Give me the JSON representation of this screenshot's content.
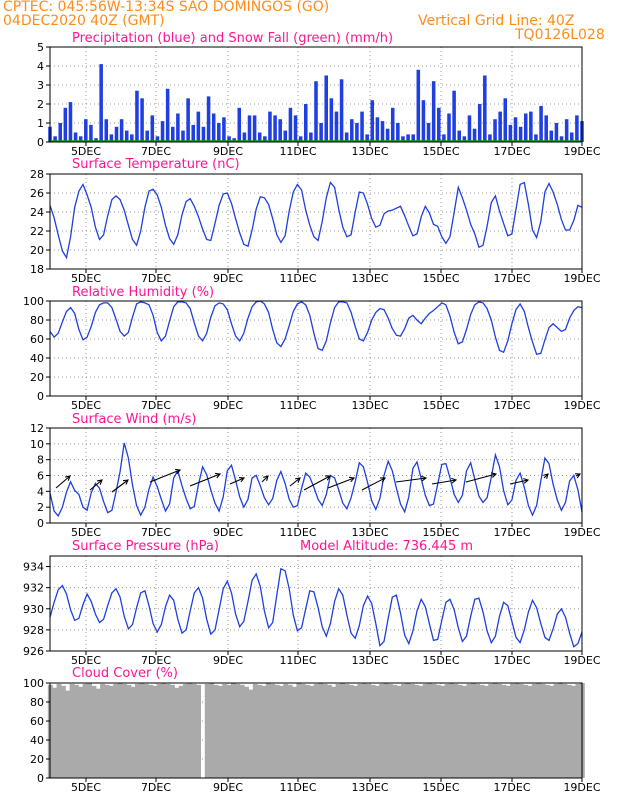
{
  "header": {
    "line1": "CPTEC:   045:56W-13:34S  SAO DOMINGOS (GO)",
    "line2": "04DEC2020 40Z (GMT)",
    "grid_note": "Vertical Grid Line: 40Z",
    "model_id": "TQ0126L028"
  },
  "colors": {
    "header": "#ff8c1a",
    "title": "#ff1493",
    "line": "#1f3fe0",
    "snow": "#00a000",
    "cloud": "#aaaaaa"
  },
  "chart_data": [
    {
      "type": "bar",
      "title": "Precipitation (blue) and Snow Fall (green) (mm/h)",
      "x_tick_labels": [
        "5DEC",
        "7DEC",
        "9DEC",
        "11DEC",
        "13DEC",
        "15DEC",
        "17DEC",
        "19DEC"
      ],
      "ylim": [
        0,
        5
      ],
      "y_ticks": [
        "0",
        "1",
        "2",
        "3",
        "4",
        "5"
      ],
      "series": [
        {
          "values": [
            0.8,
            0.3,
            1.0,
            1.8,
            2.1,
            0.5,
            0.3,
            1.2,
            0.9,
            0.2,
            4.1,
            1.2,
            0.4,
            0.8,
            1.2,
            0.6,
            0.4,
            2.7,
            2.3,
            0.6,
            1.4,
            0.3,
            1.1,
            2.8,
            0.8,
            1.5,
            0.6,
            2.3,
            0.9,
            1.6,
            0.8,
            2.4,
            1.5,
            1.0,
            1.3,
            0.3,
            0.2,
            1.8,
            0.5,
            1.4,
            1.4,
            0.5,
            0.3,
            1.6,
            1.4,
            1.2,
            0.6,
            1.8,
            1.4,
            0.3,
            2.0,
            0.5,
            3.2,
            1.0,
            3.5,
            2.3,
            1.6,
            3.3,
            0.5,
            1.2,
            1.0,
            1.6,
            0.4,
            2.2,
            1.3,
            1.1,
            0.7,
            1.8,
            1.0,
            0.3,
            0.4,
            0.4,
            3.8,
            2.2,
            1.0,
            3.2,
            1.8,
            0.4,
            1.5,
            2.7,
            0.6,
            0.3,
            1.4,
            0.7,
            2.0,
            3.5,
            0.4,
            1.2,
            1.6,
            2.3,
            0.9,
            1.3,
            0.8,
            1.5,
            1.6,
            0.4,
            1.9,
            1.4,
            0.6,
            1.0,
            0.3,
            1.2,
            0.5,
            1.4,
            1.1
          ]
        },
        {
          "values": [
            0
          ]
        }
      ]
    },
    {
      "type": "line",
      "title": "Surface Temperature (nC)",
      "x_tick_labels": [
        "5DEC",
        "7DEC",
        "9DEC",
        "11DEC",
        "13DEC",
        "15DEC",
        "17DEC",
        "19DEC"
      ],
      "ylim": [
        18,
        28
      ],
      "y_ticks": [
        "18",
        "20",
        "22",
        "24",
        "26",
        "28"
      ],
      "values": [
        24.7,
        23.4,
        21.6,
        19.9,
        19.2,
        21.4,
        24.5,
        26.2,
        26.9,
        25.8,
        24.5,
        22.4,
        21.1,
        21.6,
        23.6,
        25.3,
        25.7,
        25.3,
        24.2,
        22.6,
        21.1,
        20.5,
        22.0,
        24.5,
        26.2,
        26.4,
        25.8,
        24.5,
        22.6,
        21.2,
        20.6,
        21.6,
        23.7,
        25.1,
        25.4,
        24.6,
        23.5,
        22.2,
        21.1,
        21.0,
        22.8,
        24.7,
        25.9,
        26.0,
        24.9,
        23.3,
        21.8,
        20.6,
        20.4,
        22.1,
        24.3,
        25.6,
        25.5,
        24.8,
        23.3,
        21.6,
        20.8,
        21.5,
        24.1,
        26.1,
        26.9,
        26.3,
        24.2,
        22.6,
        21.4,
        21.0,
        23.0,
        25.5,
        27.1,
        26.6,
        24.3,
        22.4,
        21.4,
        21.6,
        24.0,
        26.1,
        26.0,
        24.8,
        23.3,
        22.4,
        22.6,
        23.8,
        24.1,
        24.2,
        24.4,
        24.6,
        23.6,
        22.5,
        21.5,
        21.7,
        23.5,
        24.6,
        23.9,
        22.7,
        22.5,
        21.4,
        20.7,
        21.4,
        24.0,
        26.6,
        25.5,
        24.2,
        22.7,
        21.7,
        20.3,
        20.5,
        22.5,
        25.0,
        25.7,
        24.1,
        22.8,
        21.5,
        21.7,
        24.3,
        26.9,
        27.1,
        24.8,
        22.1,
        21.3,
        23.0,
        26.1,
        27.0,
        26.1,
        24.8,
        23.2,
        22.1,
        22.1,
        23.1,
        24.7,
        24.5
      ]
    },
    {
      "type": "line",
      "title": "Relative Humidity (%)",
      "x_tick_labels": [
        "5DEC",
        "7DEC",
        "9DEC",
        "11DEC",
        "13DEC",
        "15DEC",
        "17DEC",
        "19DEC"
      ],
      "ylim": [
        0,
        100
      ],
      "y_ticks": [
        "0",
        "20",
        "40",
        "60",
        "80",
        "100"
      ],
      "values": [
        68,
        62,
        66,
        78,
        89,
        93,
        87,
        70,
        59,
        62,
        73,
        88,
        96,
        98,
        98,
        93,
        81,
        68,
        63,
        67,
        83,
        97,
        99,
        98,
        96,
        85,
        67,
        58,
        63,
        79,
        94,
        99,
        99,
        98,
        92,
        77,
        63,
        58,
        66,
        83,
        95,
        98,
        97,
        91,
        76,
        63,
        58,
        66,
        82,
        94,
        99,
        100,
        97,
        88,
        70,
        56,
        52,
        60,
        74,
        89,
        97,
        99,
        96,
        85,
        66,
        50,
        48,
        58,
        77,
        93,
        99,
        99,
        98,
        88,
        73,
        60,
        58,
        67,
        80,
        88,
        92,
        91,
        82,
        71,
        64,
        63,
        71,
        82,
        85,
        80,
        76,
        82,
        87,
        90,
        94,
        98,
        96,
        84,
        67,
        55,
        57,
        70,
        86,
        96,
        99,
        98,
        92,
        80,
        62,
        48,
        46,
        58,
        76,
        91,
        97,
        89,
        72,
        57,
        44,
        45,
        59,
        72,
        76,
        72,
        68,
        70,
        82,
        90,
        94,
        93
      ]
    },
    {
      "type": "line",
      "title": "Surface Wind (m/s)",
      "x_tick_labels": [
        "5DEC",
        "7DEC",
        "9DEC",
        "11DEC",
        "13DEC",
        "15DEC",
        "17DEC",
        "19DEC"
      ],
      "ylim": [
        0,
        12
      ],
      "y_ticks": [
        "0",
        "2",
        "4",
        "6",
        "8",
        "10",
        "12"
      ],
      "values": [
        3.8,
        1.5,
        0.9,
        2.0,
        3.9,
        5.2,
        4.1,
        3.6,
        2.0,
        1.6,
        3.8,
        5.0,
        4.4,
        2.7,
        1.3,
        1.6,
        3.9,
        6.5,
        10.1,
        8.2,
        4.8,
        2.2,
        1.0,
        2.0,
        4.3,
        5.8,
        4.6,
        3.0,
        1.5,
        2.4,
        5.7,
        6.6,
        4.7,
        3.1,
        1.8,
        2.1,
        4.9,
        7.1,
        6.1,
        4.2,
        2.5,
        1.5,
        3.3,
        6.6,
        7.3,
        5.4,
        3.3,
        2.0,
        3.0,
        5.7,
        6.0,
        4.7,
        3.2,
        2.3,
        3.1,
        5.4,
        6.5,
        5.0,
        3.0,
        2.0,
        2.2,
        4.4,
        6.3,
        5.8,
        4.5,
        3.0,
        2.2,
        3.6,
        6.0,
        5.7,
        4.2,
        2.5,
        1.8,
        3.2,
        5.2,
        7.6,
        7.1,
        5.1,
        2.8,
        1.7,
        3.1,
        6.0,
        7.8,
        6.6,
        4.4,
        2.4,
        1.4,
        3.3,
        6.9,
        7.7,
        5.6,
        3.5,
        2.2,
        2.4,
        4.9,
        7.4,
        7.5,
        5.7,
        3.6,
        2.6,
        3.5,
        6.6,
        7.6,
        5.5,
        3.4,
        2.6,
        3.2,
        5.8,
        8.6,
        7.1,
        4.1,
        2.3,
        2.9,
        5.4,
        6.3,
        4.5,
        2.2,
        1.0,
        2.2,
        5.3,
        8.2,
        7.5,
        4.9,
        2.9,
        1.6,
        2.6,
        5.3,
        6.0,
        4.2,
        1.4
      ]
    },
    {
      "type": "line",
      "title": "Surface Pressure (hPa)",
      "annotation": "Model Altitude: 736.445 m",
      "x_tick_labels": [
        "5DEC",
        "7DEC",
        "9DEC",
        "11DEC",
        "13DEC",
        "15DEC",
        "17DEC",
        "19DEC"
      ],
      "ylim": [
        926,
        935
      ],
      "y_ticks": [
        "926",
        "928",
        "930",
        "932",
        "934"
      ],
      "values": [
        929.2,
        930.6,
        931.8,
        932.2,
        931.4,
        929.9,
        928.9,
        929.1,
        930.4,
        931.4,
        930.7,
        929.5,
        928.7,
        929.0,
        930.3,
        931.5,
        931.9,
        931.1,
        929.3,
        928.1,
        928.5,
        930.1,
        931.5,
        931.7,
        930.3,
        928.6,
        927.8,
        928.5,
        930.2,
        931.3,
        930.8,
        929.0,
        927.7,
        928.0,
        929.8,
        931.5,
        932.0,
        931.0,
        929.0,
        927.6,
        928.0,
        929.9,
        931.9,
        932.6,
        931.5,
        929.5,
        928.3,
        928.8,
        930.7,
        932.7,
        933.3,
        932.1,
        929.8,
        928.2,
        928.7,
        931.3,
        933.8,
        933.6,
        931.9,
        929.4,
        927.9,
        928.2,
        930.0,
        931.7,
        931.6,
        930.1,
        928.3,
        927.4,
        928.6,
        930.7,
        931.9,
        931.3,
        929.4,
        927.7,
        927.2,
        928.4,
        930.3,
        931.2,
        930.5,
        928.6,
        926.5,
        926.9,
        929.1,
        931.1,
        931.3,
        929.6,
        927.5,
        926.7,
        927.9,
        929.8,
        930.9,
        930.2,
        928.6,
        927.0,
        927.1,
        928.9,
        930.6,
        930.9,
        929.9,
        928.2,
        926.9,
        927.4,
        929.3,
        930.9,
        931.0,
        929.7,
        927.9,
        926.8,
        927.4,
        929.3,
        930.6,
        930.3,
        928.8,
        927.3,
        926.8,
        928.0,
        929.7,
        930.8,
        930.1,
        928.6,
        927.3,
        927.0,
        928.1,
        929.5,
        930.0,
        929.2,
        927.7,
        926.4,
        926.7,
        927.8
      ]
    },
    {
      "type": "area",
      "title": "Cloud Cover (%)",
      "x_tick_labels": [
        "5DEC",
        "7DEC",
        "9DEC",
        "11DEC",
        "13DEC",
        "15DEC",
        "17DEC",
        "19DEC"
      ],
      "ylim": [
        0,
        100
      ],
      "y_ticks": [
        "0",
        "20",
        "40",
        "60",
        "80",
        "100"
      ],
      "values": [
        98,
        95,
        99,
        97,
        92,
        99,
        98,
        96,
        99,
        100,
        97,
        94,
        99,
        98,
        97,
        99,
        100,
        99,
        98,
        96,
        99,
        100,
        99,
        98,
        97,
        99,
        100,
        99,
        98,
        95,
        97,
        99,
        100,
        99,
        98,
        0,
        99,
        100,
        98,
        97,
        99,
        98,
        100,
        99,
        98,
        96,
        93,
        99,
        98,
        97,
        100,
        99,
        98,
        97,
        99,
        98,
        96,
        100,
        99,
        98,
        97,
        99,
        100,
        99,
        98,
        96,
        99,
        100,
        99,
        98,
        97,
        99,
        100,
        99,
        98,
        97,
        99,
        100,
        99,
        98,
        97,
        99,
        100,
        99,
        98,
        97,
        99,
        100,
        99,
        98,
        97,
        99,
        100,
        99,
        98,
        97,
        99,
        100,
        99,
        98,
        97,
        99,
        100,
        99,
        98,
        97,
        99,
        100,
        99,
        98,
        97,
        99,
        100,
        99,
        98,
        97,
        99,
        100,
        99,
        98,
        97,
        99,
        100
      ]
    }
  ]
}
